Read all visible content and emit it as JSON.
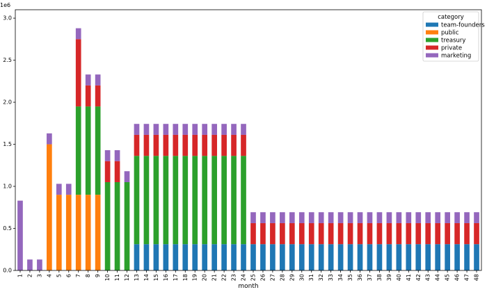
{
  "chart_data": {
    "type": "bar",
    "stacked": true,
    "xlabel": "month",
    "ylabel": "",
    "scale_label": "1e6",
    "ylim": [
      0,
      3100000
    ],
    "yticks": [
      0,
      500000,
      1000000,
      1500000,
      2000000,
      2500000,
      3000000
    ],
    "ytick_labels": [
      "0.0",
      "0.5",
      "1.0",
      "1.5",
      "2.0",
      "2.5",
      "3.0"
    ],
    "legend": {
      "title": "category",
      "placement": "top-right"
    },
    "categories": [
      "1",
      "2",
      "3",
      "4",
      "5",
      "6",
      "7",
      "8",
      "9",
      "10",
      "11",
      "12",
      "13",
      "14",
      "15",
      "16",
      "17",
      "18",
      "19",
      "20",
      "21",
      "22",
      "23",
      "24",
      "25",
      "26",
      "27",
      "28",
      "29",
      "30",
      "31",
      "32",
      "33",
      "34",
      "35",
      "36",
      "37",
      "38",
      "39",
      "40",
      "41",
      "42",
      "43",
      "44",
      "45",
      "46",
      "47",
      "48"
    ],
    "series": [
      {
        "name": "team-founders",
        "color": "#1f77b4",
        "values": [
          0,
          0,
          0,
          0,
          0,
          0,
          0,
          0,
          0,
          0,
          0,
          0,
          312500,
          312500,
          312500,
          312500,
          312500,
          312500,
          312500,
          312500,
          312500,
          312500,
          312500,
          312500,
          312500,
          312500,
          312500,
          312500,
          312500,
          312500,
          312500,
          312500,
          312500,
          312500,
          312500,
          312500,
          312500,
          312500,
          312500,
          312500,
          312500,
          312500,
          312500,
          312500,
          312500,
          312500,
          312500,
          312500
        ]
      },
      {
        "name": "public",
        "color": "#ff7f0e",
        "values": [
          0,
          0,
          0,
          1500000,
          900000,
          900000,
          900000,
          900000,
          900000,
          0,
          0,
          0,
          0,
          0,
          0,
          0,
          0,
          0,
          0,
          0,
          0,
          0,
          0,
          0,
          0,
          0,
          0,
          0,
          0,
          0,
          0,
          0,
          0,
          0,
          0,
          0,
          0,
          0,
          0,
          0,
          0,
          0,
          0,
          0,
          0,
          0,
          0,
          0
        ]
      },
      {
        "name": "treasury",
        "color": "#2ca02c",
        "values": [
          0,
          0,
          0,
          0,
          0,
          0,
          1050000,
          1050000,
          1050000,
          1050000,
          1050000,
          1050000,
          1050000,
          1050000,
          1050000,
          1050000,
          1050000,
          1050000,
          1050000,
          1050000,
          1050000,
          1050000,
          1050000,
          1050000,
          0,
          0,
          0,
          0,
          0,
          0,
          0,
          0,
          0,
          0,
          0,
          0,
          0,
          0,
          0,
          0,
          0,
          0,
          0,
          0,
          0,
          0,
          0,
          0
        ]
      },
      {
        "name": "private",
        "color": "#d62728",
        "values": [
          0,
          0,
          0,
          0,
          0,
          0,
          800000,
          250000,
          250000,
          250000,
          250000,
          0,
          250000,
          250000,
          250000,
          250000,
          250000,
          250000,
          250000,
          250000,
          250000,
          250000,
          250000,
          250000,
          250000,
          250000,
          250000,
          250000,
          250000,
          250000,
          250000,
          250000,
          250000,
          250000,
          250000,
          250000,
          250000,
          250000,
          250000,
          250000,
          250000,
          250000,
          250000,
          250000,
          250000,
          250000,
          250000,
          250000
        ]
      },
      {
        "name": "marketing",
        "color": "#9467bd",
        "values": [
          830000,
          130000,
          130000,
          130000,
          130000,
          130000,
          130000,
          130000,
          130000,
          130000,
          130000,
          130000,
          130000,
          130000,
          130000,
          130000,
          130000,
          130000,
          130000,
          130000,
          130000,
          130000,
          130000,
          130000,
          130000,
          130000,
          130000,
          130000,
          130000,
          130000,
          130000,
          130000,
          130000,
          130000,
          130000,
          130000,
          130000,
          130000,
          130000,
          130000,
          130000,
          130000,
          130000,
          130000,
          130000,
          130000,
          130000,
          130000
        ]
      }
    ]
  }
}
